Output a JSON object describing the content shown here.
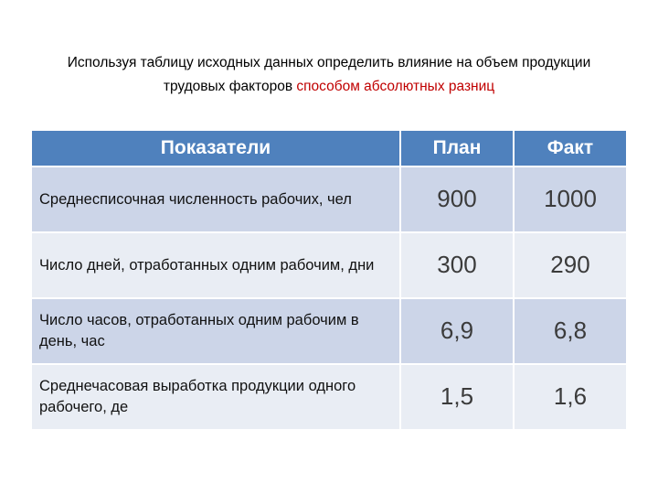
{
  "title": {
    "line1": "Используя таблицу исходных данных определить влияние на объем продукции",
    "line2_black": "трудовых факторов ",
    "line2_red": "способом абсолютных разниц"
  },
  "table": {
    "headers": {
      "indicator": "Показатели",
      "plan": "План",
      "fact": "Факт"
    },
    "rows": [
      {
        "label": "Среднесписочная численность рабочих, чел",
        "plan": "900",
        "fact": "1000"
      },
      {
        "label": "Число дней, отработанных одним рабочим, дни",
        "plan": "300",
        "fact": "290"
      },
      {
        "label": "Число часов, отработанных одним рабочим в день, час",
        "plan": "6,9",
        "fact": "6,8"
      },
      {
        "label": "Среднечасовая выработка продукции одного рабочего,  де",
        "plan": "1,5",
        "fact": "1,6"
      }
    ]
  },
  "colors": {
    "header_bg": "#4f81bd",
    "header_text": "#ffffff",
    "band_dark": "#ccd5e8",
    "band_light": "#e9edf4",
    "accent_red": "#c00000",
    "label_text": "#111111",
    "number_text": "#3b3b3b"
  }
}
